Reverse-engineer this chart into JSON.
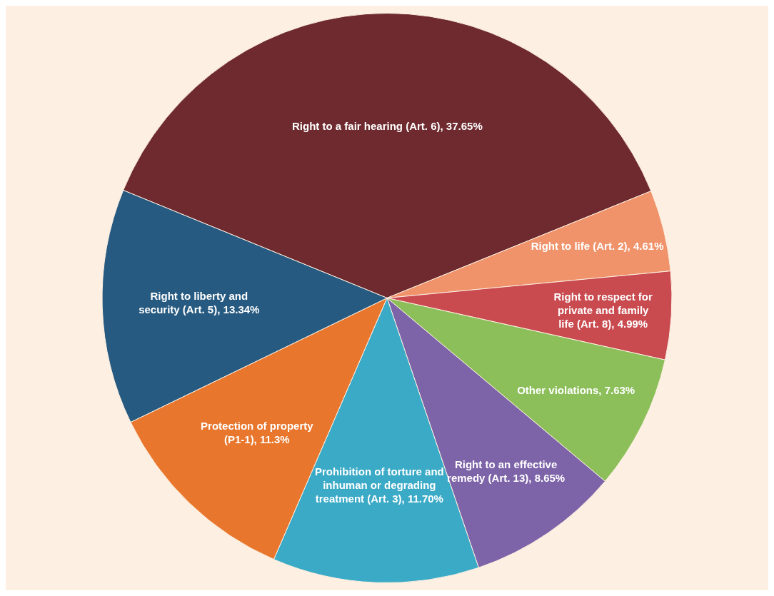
{
  "chart_data": {
    "type": "pie",
    "categories": [
      "Right to a fair hearing (Art. 6)",
      "Right to life (Art. 2)",
      "Right to respect for private and family life (Art. 8)",
      "Other violations",
      "Right to an effective remedy (Art. 13)",
      "Prohibition of torture and inhuman or degrading treatment (Art. 3)",
      "Protection of property (P1-1)",
      "Right to liberty and security (Art. 5)"
    ],
    "values": [
      37.65,
      4.61,
      4.99,
      7.63,
      8.65,
      11.7,
      11.3,
      13.34
    ],
    "value_labels": [
      "37.65%",
      "4.61%",
      "4.99%",
      "7.63%",
      "8.65%",
      "11.70%",
      "11.3%",
      "13.34%"
    ],
    "colors": [
      "#6e2a2e",
      "#f0926a",
      "#c94a4f",
      "#8cbf5a",
      "#7d63a8",
      "#3aaac6",
      "#e8762c",
      "#275a80"
    ],
    "legend": false
  }
}
